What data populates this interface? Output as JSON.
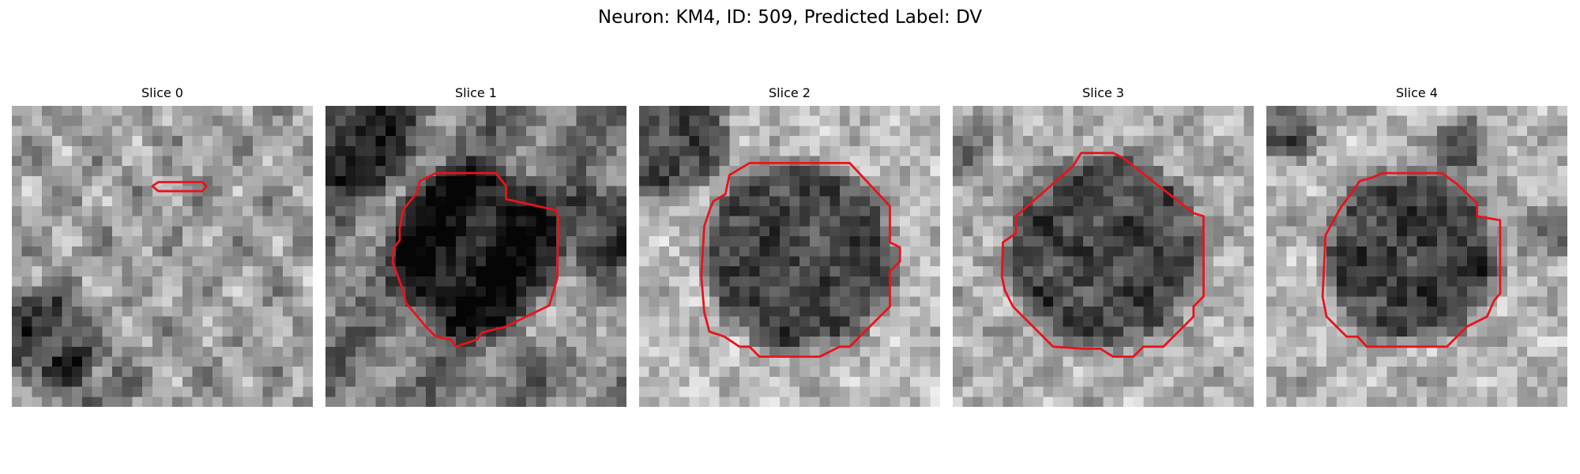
{
  "figure": {
    "title": "Neuron: KM4, ID: 509, Predicted Label: DV"
  },
  "panels": [
    {
      "title": "Slice 0",
      "contour": "small-elongated"
    },
    {
      "title": "Slice 1",
      "contour": "polygon"
    },
    {
      "title": "Slice 2",
      "contour": "polygon"
    },
    {
      "title": "Slice 3",
      "contour": "polygon"
    },
    {
      "title": "Slice 4",
      "contour": "polygon"
    }
  ],
  "colors": {
    "contour": "#e8131c",
    "background": "#ffffff",
    "text": "#000000"
  }
}
